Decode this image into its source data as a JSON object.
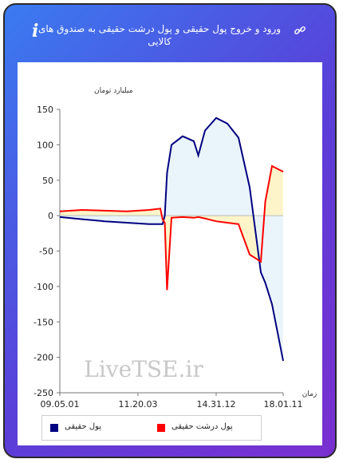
{
  "header": {
    "title": "ورود و خروج پول حقیقی و پول درشت حقیقی به صندوق های کالایی",
    "info_glyph": "i"
  },
  "colors": {
    "real_money_line": "#000080",
    "real_money_fill": "#e6f2fa",
    "big_money_line": "#ff0000",
    "big_money_fill": "#fdf3c0",
    "background": "#5a3ed8"
  },
  "watermark": "LiveTSE.ir",
  "chart_data": {
    "type": "line",
    "ylabel": "میلیارد تومان",
    "xlabel": "زمان",
    "ylim": [
      -250,
      150
    ],
    "yticks": [
      150,
      100,
      50,
      0,
      -50,
      -100,
      -150,
      -200,
      -250
    ],
    "xticks": [
      "09.05.01",
      "11.20.03",
      "14.31.12",
      "18.01.11"
    ],
    "x": [
      0,
      10,
      20,
      30,
      40,
      45,
      46,
      47,
      48,
      50,
      55,
      60,
      62,
      65,
      70,
      75,
      80,
      85,
      90,
      92,
      95,
      100
    ],
    "series": [
      {
        "name": "پول حقیقی",
        "values": [
          -2,
          -5,
          -8,
          -10,
          -12,
          -12,
          -12,
          0,
          60,
          100,
          112,
          105,
          85,
          120,
          138,
          130,
          110,
          40,
          -80,
          -95,
          -125,
          -205
        ]
      },
      {
        "name": "پول درشت حقیقی",
        "values": [
          6,
          8,
          7,
          6,
          8,
          10,
          -5,
          -10,
          -105,
          -3,
          -2,
          -3,
          -2,
          -4,
          -8,
          -10,
          -12,
          -55,
          -65,
          20,
          70,
          62
        ]
      }
    ],
    "legend": [
      {
        "label": "پول حقیقی",
        "color": "#000080"
      },
      {
        "label": "پول درشت حقیقی",
        "color": "#ff0000"
      }
    ],
    "legend_position": "bottom",
    "grid": false
  }
}
